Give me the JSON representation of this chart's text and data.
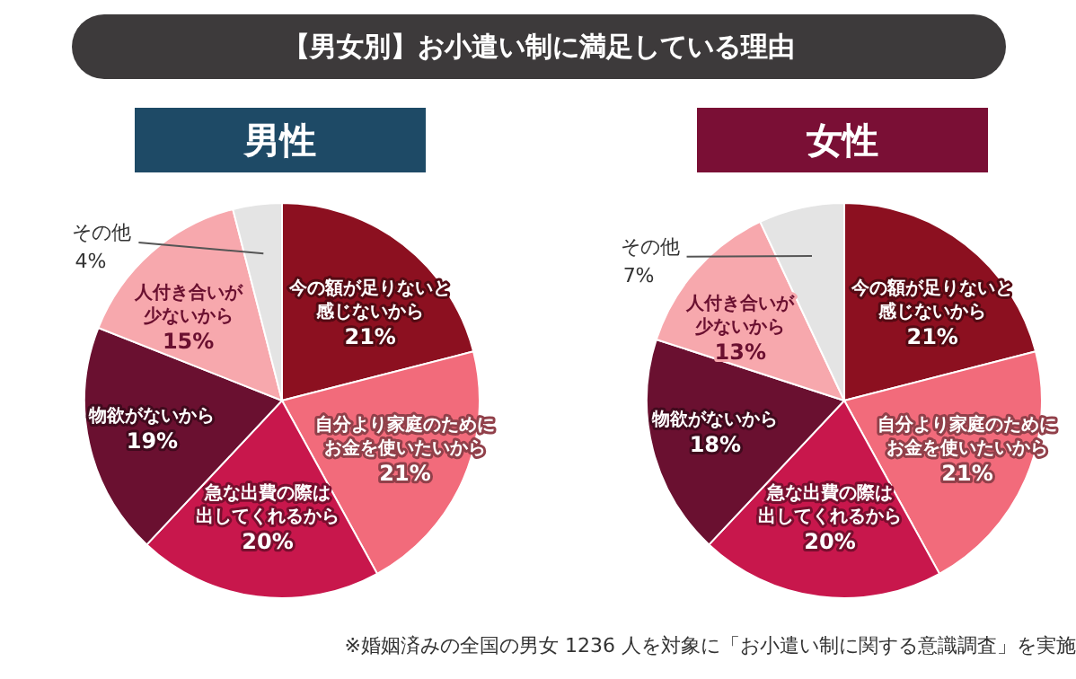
{
  "chart_data": [
    {
      "type": "pie",
      "title": "【男女別】お小遣い制に満足している理由",
      "subtitle": "男性",
      "categories": [
        "今の額が足りないと感じないから",
        "自分より家庭のためにお金を使いたいから",
        "急な出費の際は出してくれるから",
        "物欲がないから",
        "人付き合いが少ないから",
        "その他"
      ],
      "values": [
        21,
        21,
        20,
        19,
        15,
        4
      ],
      "value_labels": [
        "21%",
        "21%",
        "20%",
        "19%",
        "15%",
        "4%"
      ],
      "colors": [
        "#8c1020",
        "#f26b7b",
        "#c8174c",
        "#6a1030",
        "#f7a8ad",
        "#e4e4e4"
      ],
      "legend": false
    },
    {
      "type": "pie",
      "subtitle": "女性",
      "categories": [
        "今の額が足りないと感じないから",
        "自分より家庭のためにお金を使いたいから",
        "急な出費の際は出してくれるから",
        "物欲がないから",
        "人付き合いが少ないから",
        "その他"
      ],
      "values": [
        21,
        21,
        20,
        18,
        13,
        7
      ],
      "value_labels": [
        "21%",
        "21%",
        "20%",
        "18%",
        "13%",
        "7%"
      ],
      "colors": [
        "#8c1020",
        "#f26b7b",
        "#c8174c",
        "#6a1030",
        "#f7a8ad",
        "#e4e4e4"
      ],
      "legend": false,
      "annotations": [
        "※婚姻済みの全国の男女 1236 人を対象に「お小遣い制に関する意識調査」を実施"
      ]
    }
  ]
}
